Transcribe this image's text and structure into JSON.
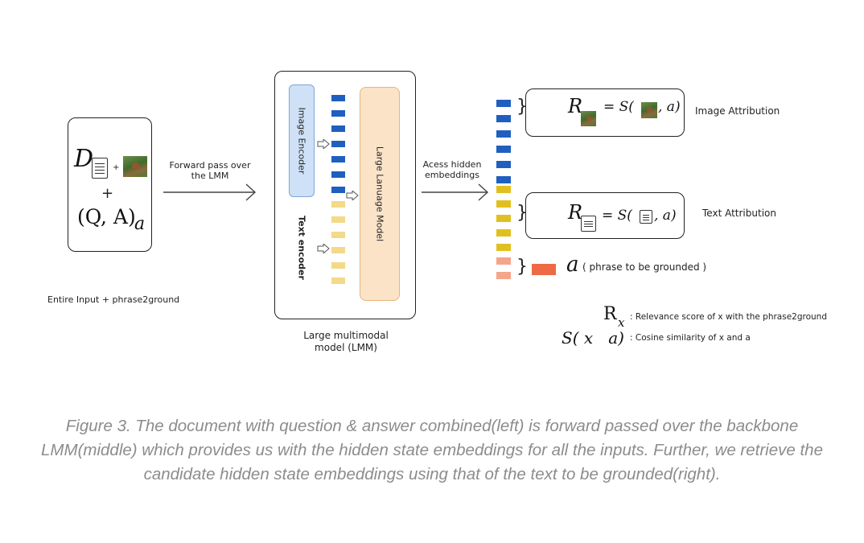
{
  "input": {
    "d_symbol": "D",
    "plus_small": "+",
    "plus": "+",
    "qa_label": "(Q, A)",
    "qa_subscript": "a",
    "caption": "Entire Input + phrase2ground"
  },
  "arrow1_label": "Forward pass over the LMM",
  "lmm": {
    "image_encoder": "Image Encoder",
    "text_encoder": "Text encoder",
    "llm": "Large Lanuage Model",
    "caption": "Large multimodal model (LMM)"
  },
  "arrow2_label": "Acess hidden embeddings",
  "right": {
    "image_attr_r": "R",
    "image_attr_eq": "= S(",
    "image_attr_tail": ", a)",
    "image_attribution": "Image Attribution",
    "text_attr_r": "R",
    "text_attr_eq": "= S(",
    "text_attr_tail": ", a)",
    "text_attribution": "Text Attribution",
    "phrase_symbol": "a",
    "phrase_label": "( phrase to be grounded )",
    "legend_r": "R",
    "legend_r_sub": "x",
    "legend_r_desc": ": Relevance score of x with the phrase2ground",
    "legend_s": "S( x   a)",
    "legend_s_desc": ": Cosine similarity of x and a"
  },
  "colors": {
    "blue_token": "#1f5fbf",
    "yellow_token": "#f3d98a",
    "dark_blue": "#0e3d80",
    "olive": "#b8960c",
    "gold": "#e0c020",
    "salmon": "#f4a58a",
    "orange": "#ee6a45",
    "image_encoder_fill": "#cfe1f7",
    "llm_fill": "#fbe3c8"
  },
  "figure_caption": "Figure 3. The document with question & answer combined(left) is forward passed over the backbone LMM(middle) which provides us with the hidden state embeddings for all the inputs. Further, we retrieve the candidate hidden state embeddings using that of the text to be grounded(right)."
}
